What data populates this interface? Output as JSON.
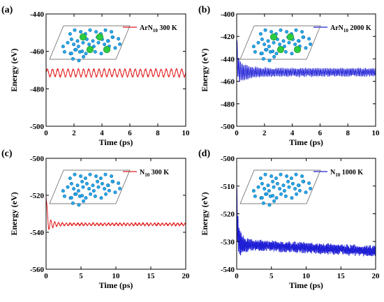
{
  "chart_data": [
    {
      "type": "line",
      "panel_label": "(a)",
      "xlabel": "Time (ps)",
      "ylabel": "Energy (eV)",
      "xlim": [
        0,
        10
      ],
      "ylim": [
        -500,
        -440
      ],
      "xticks": [
        0,
        2,
        4,
        6,
        8,
        10
      ],
      "yticks": [
        -500,
        -480,
        -460,
        -440
      ],
      "series": [
        {
          "name_main": "ArN",
          "name_sub": "10",
          "name_rest": " 300 K",
          "color": "#e31a1c",
          "start": -470,
          "mean": -471.5,
          "amplitude": 2.0,
          "period": 0.37,
          "noise": 0.3,
          "x_end": 10
        }
      ],
      "inset": {
        "structure": "ArN10 sheet",
        "has_ar": true
      }
    },
    {
      "type": "line",
      "panel_label": "(b)",
      "xlabel": "Time (ps)",
      "ylabel": "Energy (eV)",
      "xlim": [
        0,
        10
      ],
      "ylim": [
        -500,
        -400
      ],
      "xticks": [
        0,
        2,
        4,
        6,
        8,
        10
      ],
      "yticks": [
        -500,
        -480,
        -460,
        -440,
        -420,
        -400
      ],
      "series": [
        {
          "name_main": "ArN",
          "name_sub": "10",
          "name_rest": " 2000 K",
          "color": "#1f1fd6",
          "start": -428,
          "mean": -452,
          "amplitude": 3.0,
          "period": 0.12,
          "noise": 1.0,
          "transient": 14,
          "x_end": 10
        }
      ],
      "inset": {
        "structure": "ArN10 sheet",
        "has_ar": true
      }
    },
    {
      "type": "line",
      "panel_label": "(c)",
      "xlabel": "Time (ps)",
      "ylabel": "Energy (eV)",
      "xlim": [
        0,
        20
      ],
      "ylim": [
        -560,
        -500
      ],
      "xticks": [
        0,
        5,
        10,
        15,
        20
      ],
      "yticks": [
        -560,
        -540,
        -520,
        -500
      ],
      "series": [
        {
          "name_main": "N",
          "name_sub": "10",
          "name_rest": " 300 K",
          "color": "#e31a1c",
          "start": -521,
          "mean": -535.7,
          "amplitude": 0.6,
          "period": 0.55,
          "noise": 0.15,
          "transient": 8,
          "x_end": 20
        }
      ],
      "inset": {
        "structure": "N10 sheet",
        "has_ar": false
      }
    },
    {
      "type": "line",
      "panel_label": "(d)",
      "xlabel": "Time (ps)",
      "ylabel": "Energy (eV)",
      "xlim": [
        0,
        20
      ],
      "ylim": [
        -540,
        -500
      ],
      "xticks": [
        0,
        5,
        10,
        15,
        20
      ],
      "yticks": [
        -540,
        -530,
        -520,
        -510,
        -500
      ],
      "series": [
        {
          "name_main": "N",
          "name_sub": "10",
          "name_rest": " 1000 K",
          "color": "#1f1fd6",
          "start": -514,
          "mean": -531,
          "drift": -2.5,
          "amplitude": 1.2,
          "period": 0.15,
          "noise": 0.9,
          "transient": 7,
          "x_end": 20
        }
      ],
      "inset": {
        "structure": "N10 sheet",
        "has_ar": false
      }
    }
  ]
}
